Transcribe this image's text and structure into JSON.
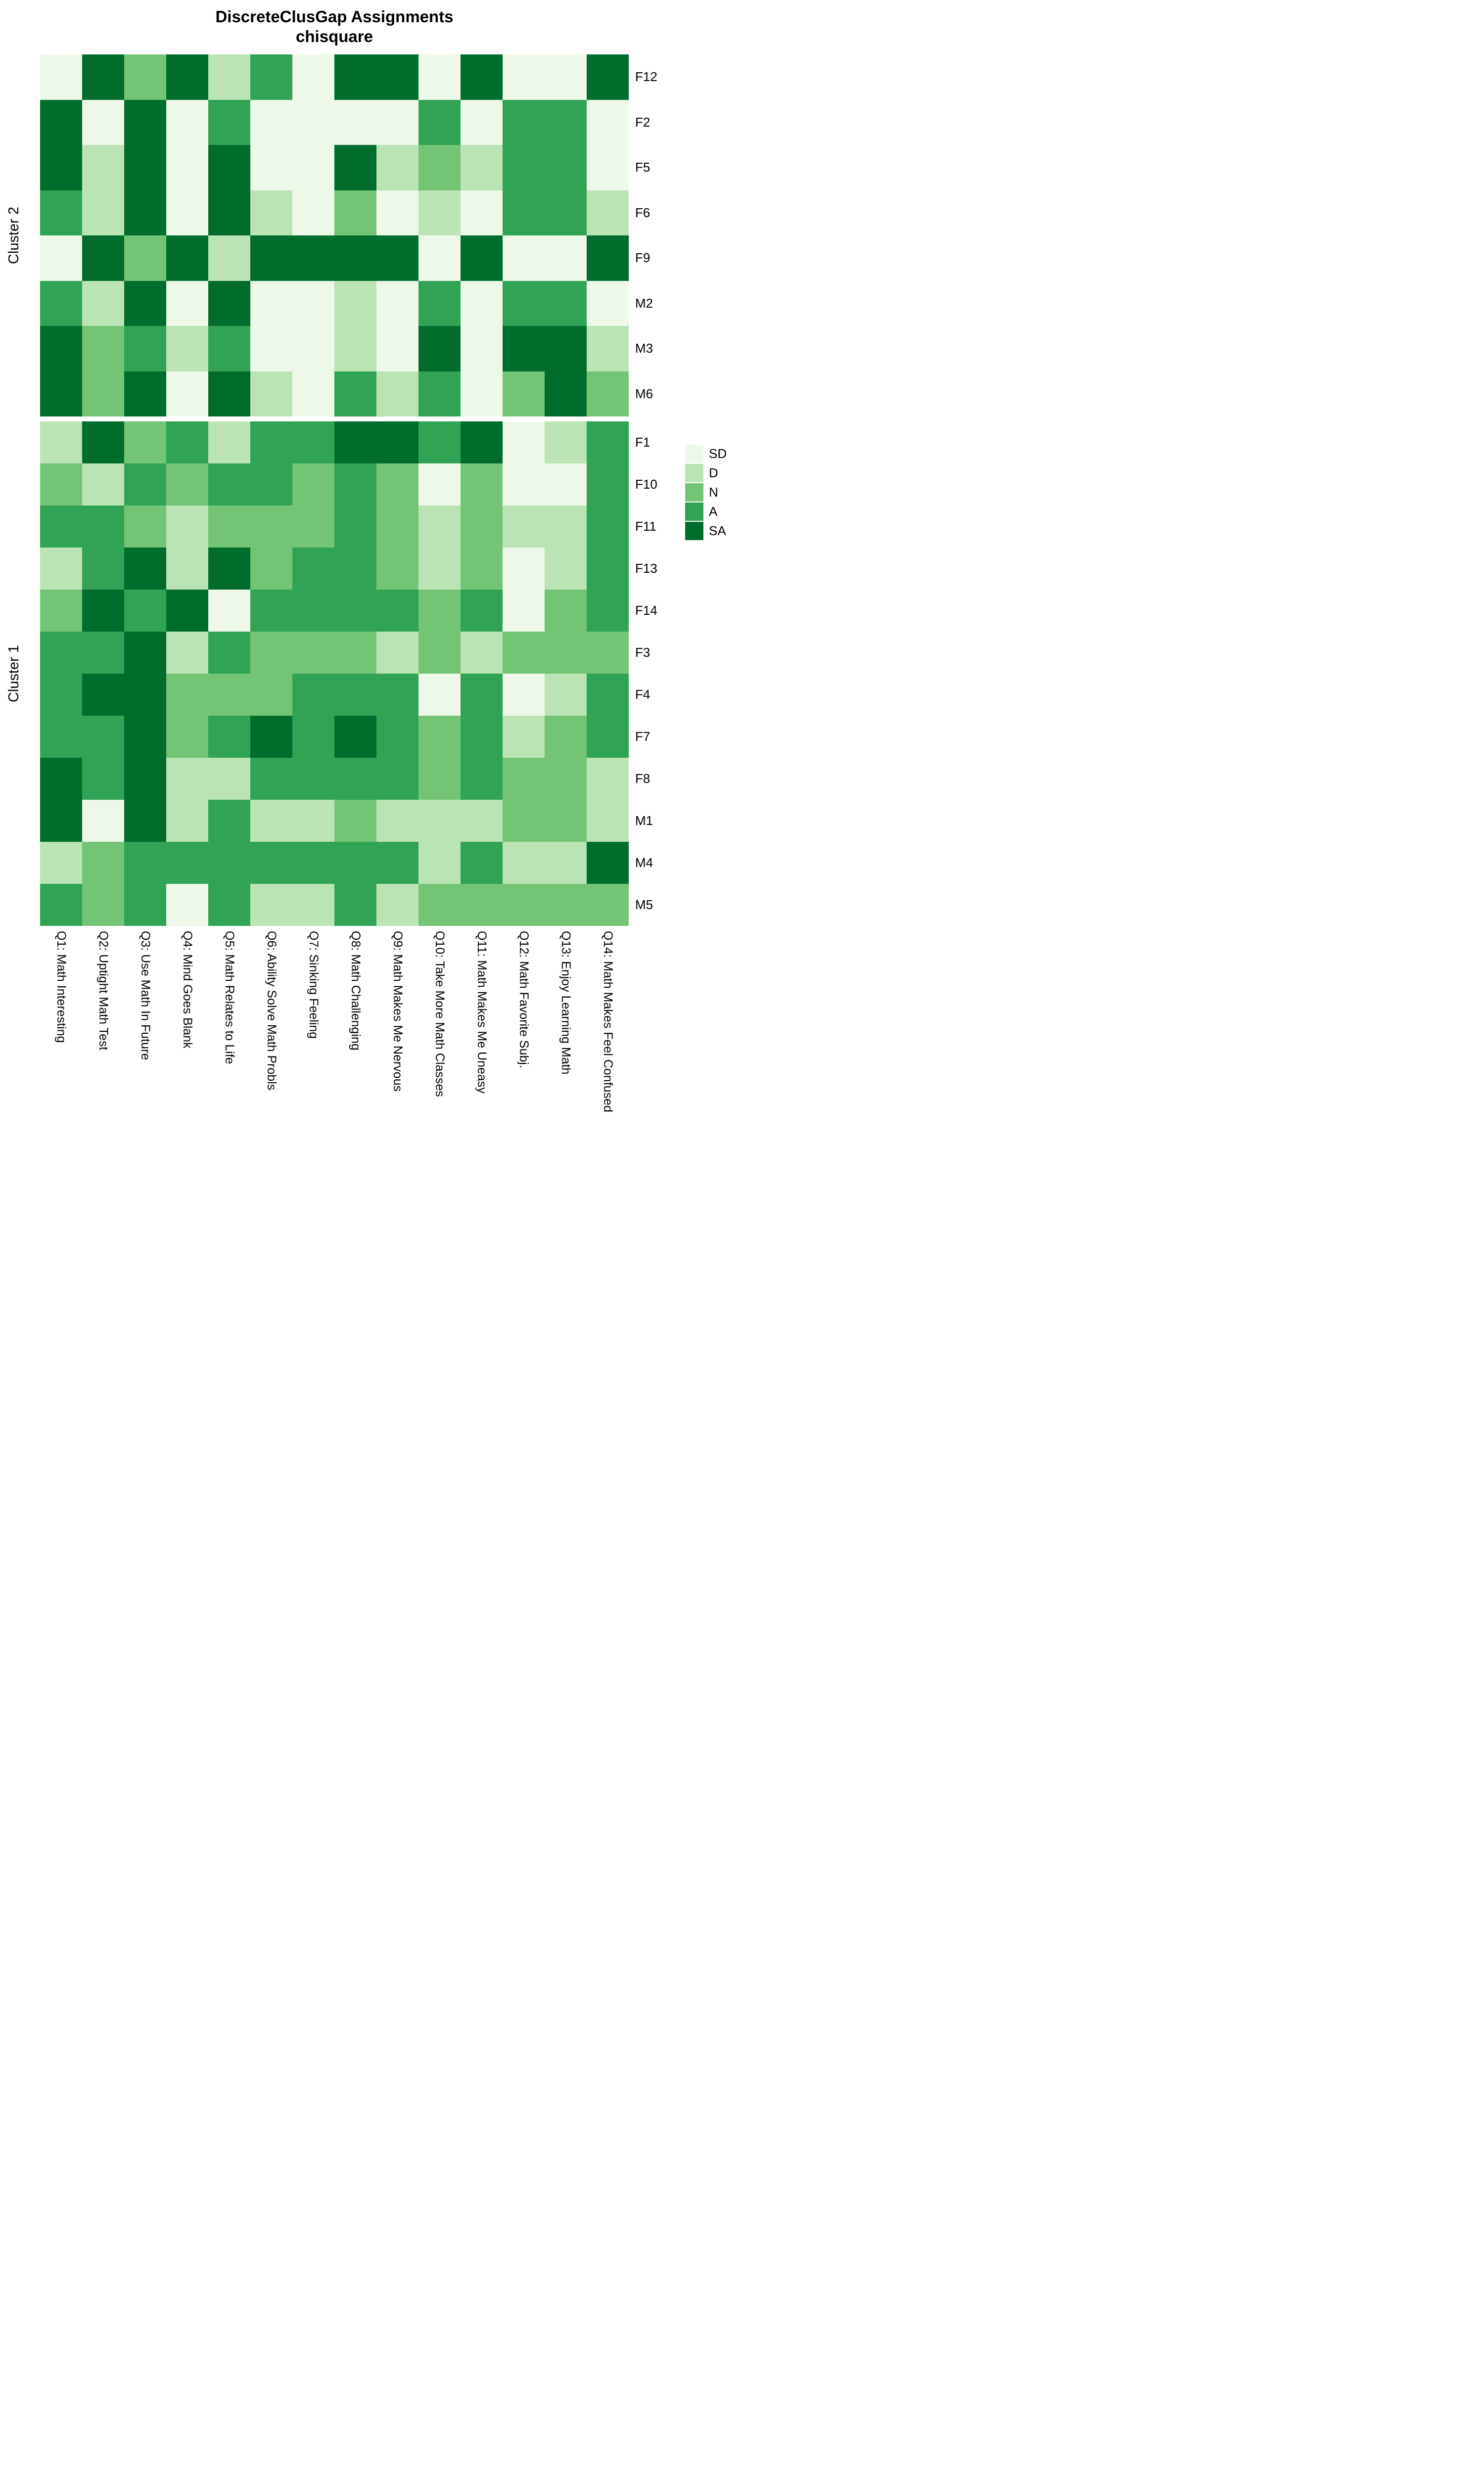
{
  "chart_data": {
    "type": "heatmap",
    "title": "DiscreteClusGap Assignments",
    "subtitle": "chisquare",
    "levels": [
      "SD",
      "D",
      "N",
      "A",
      "SA"
    ],
    "level_colors": {
      "SD": "#edf8e9",
      "D": "#bae4b3",
      "N": "#74c476",
      "A": "#31a354",
      "SA": "#006d2c"
    },
    "legend_position": "right",
    "columns": [
      "Q1: Math Interesting",
      "Q2: Uptight Math Test",
      "Q3: Use Math In Future",
      "Q4: Mind Goes Blank",
      "Q5: Math Relates to Life",
      "Q6: Ability Solve Math Probls",
      "Q7: Sinking Feeling",
      "Q8: Math Challenging",
      "Q9: Math Makes Me Nervous",
      "Q10: Take More Math Classes",
      "Q11: Math Makes Me Uneasy",
      "Q12: Math Favorite Subj.",
      "Q13: Enjoy Learning Math",
      "Q14: Math Makes Feel Confused"
    ],
    "clusters": [
      {
        "name": "Cluster 2",
        "rows": [
          {
            "id": "F12",
            "values": [
              "SD",
              "SA",
              "N",
              "SA",
              "D",
              "A",
              "SD",
              "SA",
              "SA",
              "SD",
              "SA",
              "SD",
              "SD",
              "SA"
            ]
          },
          {
            "id": "F2",
            "values": [
              "SA",
              "SD",
              "SA",
              "SD",
              "A",
              "SD",
              "SD",
              "SD",
              "SD",
              "A",
              "SD",
              "A",
              "A",
              "SD"
            ]
          },
          {
            "id": "F5",
            "values": [
              "SA",
              "D",
              "SA",
              "SD",
              "SA",
              "SD",
              "SD",
              "SA",
              "D",
              "N",
              "D",
              "A",
              "A",
              "SD"
            ]
          },
          {
            "id": "F6",
            "values": [
              "A",
              "D",
              "SA",
              "SD",
              "SA",
              "D",
              "SD",
              "N",
              "SD",
              "D",
              "SD",
              "A",
              "A",
              "D"
            ]
          },
          {
            "id": "F9",
            "values": [
              "SD",
              "SA",
              "N",
              "SA",
              "D",
              "SA",
              "SA",
              "SA",
              "SA",
              "SD",
              "SA",
              "SD",
              "SD",
              "SA"
            ]
          },
          {
            "id": "M2",
            "values": [
              "A",
              "D",
              "SA",
              "SD",
              "SA",
              "SD",
              "SD",
              "D",
              "SD",
              "A",
              "SD",
              "A",
              "A",
              "SD"
            ]
          },
          {
            "id": "M3",
            "values": [
              "SA",
              "N",
              "A",
              "D",
              "A",
              "SD",
              "SD",
              "D",
              "SD",
              "SA",
              "SD",
              "SA",
              "SA",
              "D"
            ]
          },
          {
            "id": "M6",
            "values": [
              "SA",
              "N",
              "SA",
              "SD",
              "SA",
              "D",
              "SD",
              "A",
              "D",
              "A",
              "SD",
              "N",
              "SA",
              "N"
            ]
          }
        ]
      },
      {
        "name": "Cluster 1",
        "rows": [
          {
            "id": "F1",
            "values": [
              "D",
              "SA",
              "N",
              "A",
              "D",
              "A",
              "A",
              "SA",
              "SA",
              "A",
              "SA",
              "SD",
              "D",
              "A"
            ]
          },
          {
            "id": "F10",
            "values": [
              "N",
              "D",
              "A",
              "N",
              "A",
              "A",
              "N",
              "A",
              "N",
              "SD",
              "N",
              "SD",
              "SD",
              "A"
            ]
          },
          {
            "id": "F11",
            "values": [
              "A",
              "A",
              "N",
              "D",
              "N",
              "N",
              "N",
              "A",
              "N",
              "D",
              "N",
              "D",
              "D",
              "A"
            ]
          },
          {
            "id": "F13",
            "values": [
              "D",
              "A",
              "SA",
              "D",
              "SA",
              "N",
              "A",
              "A",
              "N",
              "D",
              "N",
              "SD",
              "D",
              "A"
            ]
          },
          {
            "id": "F14",
            "values": [
              "N",
              "SA",
              "A",
              "SA",
              "SD",
              "A",
              "A",
              "A",
              "A",
              "N",
              "A",
              "SD",
              "N",
              "A"
            ]
          },
          {
            "id": "F3",
            "values": [
              "A",
              "A",
              "SA",
              "D",
              "A",
              "N",
              "N",
              "N",
              "D",
              "N",
              "D",
              "N",
              "N",
              "N"
            ]
          },
          {
            "id": "F4",
            "values": [
              "A",
              "SA",
              "SA",
              "N",
              "N",
              "N",
              "A",
              "A",
              "A",
              "SD",
              "A",
              "SD",
              "D",
              "A"
            ]
          },
          {
            "id": "F7",
            "values": [
              "A",
              "A",
              "SA",
              "N",
              "A",
              "SA",
              "A",
              "SA",
              "A",
              "N",
              "A",
              "D",
              "N",
              "A"
            ]
          },
          {
            "id": "F8",
            "values": [
              "SA",
              "A",
              "SA",
              "D",
              "D",
              "A",
              "A",
              "A",
              "A",
              "N",
              "A",
              "N",
              "N",
              "D"
            ]
          },
          {
            "id": "M1",
            "values": [
              "SA",
              "SD",
              "SA",
              "D",
              "A",
              "D",
              "D",
              "N",
              "D",
              "D",
              "D",
              "N",
              "N",
              "D"
            ]
          },
          {
            "id": "M4",
            "values": [
              "D",
              "N",
              "A",
              "A",
              "A",
              "A",
              "A",
              "A",
              "A",
              "D",
              "A",
              "D",
              "D",
              "SA"
            ]
          },
          {
            "id": "M5",
            "values": [
              "A",
              "N",
              "A",
              "SD",
              "A",
              "D",
              "D",
              "A",
              "D",
              "N",
              "N",
              "N",
              "N",
              "N"
            ]
          }
        ]
      }
    ]
  }
}
